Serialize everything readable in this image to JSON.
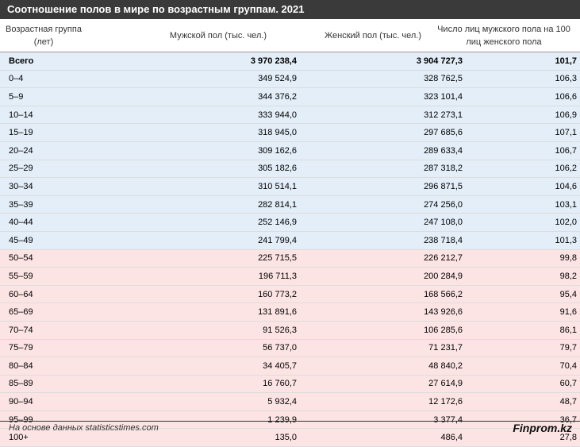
{
  "title": "Соотношение полов в мире по возрастным группам. 2021",
  "headers": {
    "age": "Возрастная группа (лет)",
    "male": "Мужской пол (тыс. чел.)",
    "female": "Женский пол (тыс. чел.)",
    "ratio": "Число лиц мужского пола на 100 лиц женского пола"
  },
  "rows": [
    {
      "age": "Всего",
      "male": "3 970 238,4",
      "female": "3 904 727,3",
      "ratio": "101,7"
    },
    {
      "age": "0–4",
      "male": "349 524,9",
      "female": "328 762,5",
      "ratio": "106,3"
    },
    {
      "age": "5–9",
      "male": "344 376,2",
      "female": "323 101,4",
      "ratio": "106,6"
    },
    {
      "age": "10–14",
      "male": "333 944,0",
      "female": "312 273,1",
      "ratio": "106,9"
    },
    {
      "age": "15–19",
      "male": "318 945,0",
      "female": "297 685,6",
      "ratio": "107,1"
    },
    {
      "age": "20–24",
      "male": "309 162,6",
      "female": "289 633,4",
      "ratio": "106,7"
    },
    {
      "age": "25–29",
      "male": "305 182,6",
      "female": "287 318,2",
      "ratio": "106,2"
    },
    {
      "age": "30–34",
      "male": "310 514,1",
      "female": "296 871,5",
      "ratio": "104,6"
    },
    {
      "age": "35–39",
      "male": "282 814,1",
      "female": "274 256,0",
      "ratio": "103,1"
    },
    {
      "age": "40–44",
      "male": "252 146,9",
      "female": "247 108,0",
      "ratio": "102,0"
    },
    {
      "age": "45–49",
      "male": "241 799,4",
      "female": "238 718,4",
      "ratio": "101,3"
    },
    {
      "age": "50–54",
      "male": "225 715,5",
      "female": "226 212,7",
      "ratio": "99,8"
    },
    {
      "age": "55–59",
      "male": "196 711,3",
      "female": "200 284,9",
      "ratio": "98,2"
    },
    {
      "age": "60–64",
      "male": "160 773,2",
      "female": "168 566,2",
      "ratio": "95,4"
    },
    {
      "age": "65–69",
      "male": "131 891,6",
      "female": "143 926,6",
      "ratio": "91,6"
    },
    {
      "age": "70–74",
      "male": "91 526,3",
      "female": "106 285,6",
      "ratio": "86,1"
    },
    {
      "age": "75–79",
      "male": "56 737,0",
      "female": "71 231,7",
      "ratio": "79,7"
    },
    {
      "age": "80–84",
      "male": "34 405,7",
      "female": "48 840,2",
      "ratio": "70,4"
    },
    {
      "age": "85–89",
      "male": "16 760,7",
      "female": "27 614,9",
      "ratio": "60,7"
    },
    {
      "age": "90–94",
      "male": "5 932,4",
      "female": "12 172,6",
      "ratio": "48,7"
    },
    {
      "age": "95–99",
      "male": "1 239,9",
      "female": "3 377,4",
      "ratio": "36,7"
    },
    {
      "age": "100+",
      "male": "135,0",
      "female": "486,4",
      "ratio": "27,8"
    }
  ],
  "footer": {
    "source": "На основе данных statisticstimes.com",
    "brand": "Finprom.kz"
  },
  "colors": {
    "title_bg": "#3a3a3a",
    "row_male_majority": "#e3eef8",
    "row_female_majority": "#fde4e4"
  }
}
